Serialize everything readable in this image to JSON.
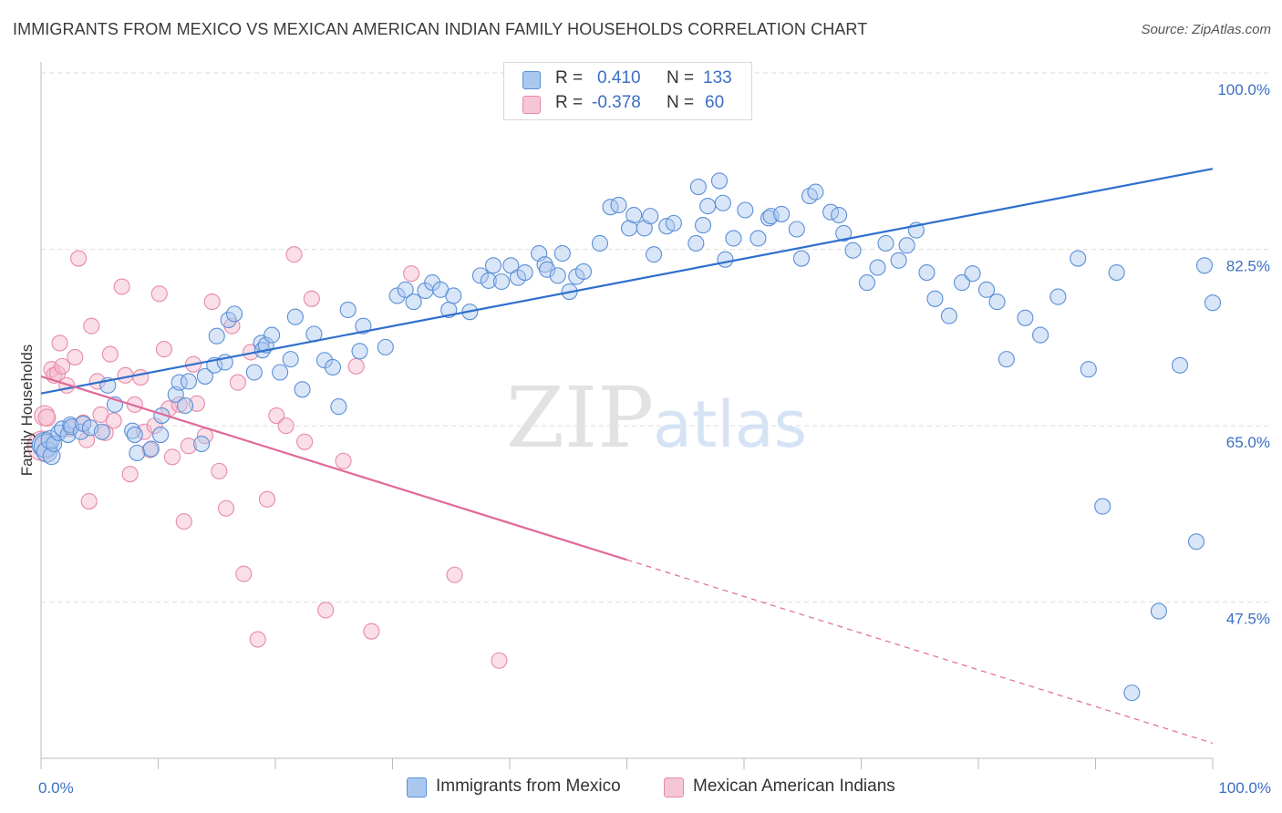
{
  "title": "IMMIGRANTS FROM MEXICO VS MEXICAN AMERICAN INDIAN FAMILY HOUSEHOLDS CORRELATION CHART",
  "source": "Source: ZipAtlas.com",
  "watermark": {
    "zip": "ZIP",
    "atlas": "atlas"
  },
  "legend": {
    "r_label": "R =",
    "n_label": "N =",
    "series1": {
      "r": "0.410",
      "n": "133"
    },
    "series2": {
      "r": "-0.378",
      "n": "60"
    }
  },
  "bottom_legend": {
    "series1": "Immigrants from Mexico",
    "series2": "Mexican American Indians"
  },
  "colors": {
    "blue_fill": "#aac8ef",
    "blue_stroke": "#5b8fd6",
    "blue_line": "#2f6fcc",
    "pink_fill": "#f5b8cb",
    "pink_stroke": "#e88aa8",
    "pink_line": "#e0699a",
    "tick_label": "#3b6fc4",
    "grid": "#dddddd"
  },
  "chart_data": {
    "type": "scatter",
    "title": "IMMIGRANTS FROM MEXICO VS MEXICAN AMERICAN INDIAN FAMILY HOUSEHOLDS CORRELATION CHART",
    "xlabel": "",
    "ylabel": "Family Households",
    "xlim": [
      0,
      100
    ],
    "ylim": [
      32,
      102
    ],
    "x_tick_labels": [
      {
        "value": 0,
        "label": "0.0%"
      },
      {
        "value": 100,
        "label": "100.0%"
      }
    ],
    "y_tick_labels": [
      {
        "value": 100,
        "label": "100.0%"
      },
      {
        "value": 82.5,
        "label": "82.5%"
      },
      {
        "value": 65,
        "label": "65.0%"
      },
      {
        "value": 47.5,
        "label": "47.5%"
      }
    ],
    "x_minor_ticks": [
      0,
      10,
      20,
      30,
      40,
      50,
      60,
      70,
      80,
      90,
      100
    ],
    "grid": true,
    "legend_position": "top-center",
    "series": [
      {
        "name": "Immigrants from Mexico",
        "color": "#5b8fd6",
        "r": 0.41,
        "n": 133,
        "trendline": {
          "x": [
            0,
            100
          ],
          "y": [
            68.2,
            90.5
          ]
        },
        "points": [
          [
            0.3,
            63.1,
            1.6
          ],
          [
            0.4,
            63.0,
            1.5
          ],
          [
            0.5,
            62.4,
            1.3
          ],
          [
            0.8,
            63.6,
            1.2
          ],
          [
            0.9,
            62.0,
            1.1
          ],
          [
            1.1,
            63.2,
            1.0
          ],
          [
            1.5,
            64.3,
            1.0
          ],
          [
            1.8,
            64.7,
            1.0
          ],
          [
            2.3,
            64.1,
            1.0
          ],
          [
            2.5,
            65.1,
            1.0
          ],
          [
            2.6,
            64.9,
            1.0
          ],
          [
            3.4,
            64.4,
            1.0
          ],
          [
            3.6,
            65.2,
            1.0
          ],
          [
            4.2,
            64.8,
            1.0
          ],
          [
            5.2,
            64.4,
            1.0
          ],
          [
            5.7,
            69.0,
            1.0
          ],
          [
            6.3,
            67.1,
            1.0
          ],
          [
            7.8,
            64.5,
            1.0
          ],
          [
            8.0,
            64.1,
            1.0
          ],
          [
            8.2,
            62.3,
            1.0
          ],
          [
            9.4,
            62.7,
            1.0
          ],
          [
            10.2,
            64.1,
            1.0
          ],
          [
            10.3,
            66.0,
            1.0
          ],
          [
            11.5,
            68.1,
            1.0
          ],
          [
            11.8,
            69.3,
            1.0
          ],
          [
            12.3,
            67.0,
            1.0
          ],
          [
            12.6,
            69.4,
            1.0
          ],
          [
            13.7,
            63.2,
            1.0
          ],
          [
            14.0,
            69.9,
            1.0
          ],
          [
            14.8,
            71.0,
            1.0
          ],
          [
            15.0,
            73.9,
            1.0
          ],
          [
            15.7,
            71.3,
            1.0
          ],
          [
            16.0,
            75.5,
            1.0
          ],
          [
            16.5,
            76.1,
            1.0
          ],
          [
            18.2,
            70.3,
            1.0
          ],
          [
            18.8,
            73.2,
            1.0
          ],
          [
            18.9,
            72.5,
            1.0
          ],
          [
            19.2,
            73.0,
            1.0
          ],
          [
            19.7,
            74.0,
            1.0
          ],
          [
            20.4,
            70.3,
            1.0
          ],
          [
            21.3,
            71.6,
            1.0
          ],
          [
            21.7,
            75.8,
            1.0
          ],
          [
            22.3,
            68.6,
            1.0
          ],
          [
            23.3,
            74.1,
            1.0
          ],
          [
            24.2,
            71.5,
            1.0
          ],
          [
            24.9,
            70.8,
            1.0
          ],
          [
            25.4,
            66.9,
            1.0
          ],
          [
            26.2,
            76.5,
            1.0
          ],
          [
            27.2,
            72.4,
            1.0
          ],
          [
            27.5,
            74.9,
            1.0
          ],
          [
            29.4,
            72.8,
            1.0
          ],
          [
            30.4,
            77.9,
            1.0
          ],
          [
            31.1,
            78.5,
            1.0
          ],
          [
            31.8,
            77.3,
            1.0
          ],
          [
            32.8,
            78.4,
            1.0
          ],
          [
            33.4,
            79.2,
            1.0
          ],
          [
            34.1,
            78.5,
            1.0
          ],
          [
            34.8,
            76.5,
            1.0
          ],
          [
            35.2,
            77.9,
            1.0
          ],
          [
            36.6,
            76.3,
            1.0
          ],
          [
            37.5,
            79.9,
            1.0
          ],
          [
            38.2,
            79.4,
            1.0
          ],
          [
            38.6,
            80.9,
            1.0
          ],
          [
            39.3,
            79.3,
            1.0
          ],
          [
            40.1,
            80.9,
            1.0
          ],
          [
            40.7,
            79.7,
            1.0
          ],
          [
            41.3,
            80.2,
            1.0
          ],
          [
            42.5,
            82.1,
            1.0
          ],
          [
            43.0,
            81.0,
            1.0
          ],
          [
            43.2,
            80.5,
            1.0
          ],
          [
            44.1,
            79.9,
            1.0
          ],
          [
            44.5,
            82.1,
            1.0
          ],
          [
            45.1,
            78.3,
            1.0
          ],
          [
            45.7,
            79.8,
            1.0
          ],
          [
            46.3,
            80.3,
            1.0
          ],
          [
            47.7,
            83.1,
            1.0
          ],
          [
            48.6,
            86.7,
            1.0
          ],
          [
            49.3,
            86.9,
            1.0
          ],
          [
            50.2,
            84.6,
            1.0
          ],
          [
            50.6,
            85.9,
            1.0
          ],
          [
            51.5,
            84.6,
            1.0
          ],
          [
            52.0,
            85.8,
            1.0
          ],
          [
            52.3,
            82.0,
            1.0
          ],
          [
            53.4,
            84.8,
            1.0
          ],
          [
            54.0,
            85.1,
            1.0
          ],
          [
            55.9,
            83.1,
            1.0
          ],
          [
            56.1,
            88.7,
            1.0
          ],
          [
            56.5,
            84.9,
            1.0
          ],
          [
            56.9,
            86.8,
            1.0
          ],
          [
            57.9,
            89.3,
            1.0
          ],
          [
            58.2,
            87.1,
            1.0
          ],
          [
            58.4,
            81.5,
            1.0
          ],
          [
            59.1,
            83.6,
            1.0
          ],
          [
            60.1,
            86.4,
            1.0
          ],
          [
            61.2,
            83.6,
            1.0
          ],
          [
            62.1,
            85.6,
            1.0
          ],
          [
            62.3,
            85.8,
            1.0
          ],
          [
            63.2,
            86.0,
            1.0
          ],
          [
            64.5,
            84.5,
            1.0
          ],
          [
            64.9,
            81.6,
            1.0
          ],
          [
            65.6,
            87.8,
            1.0
          ],
          [
            66.1,
            88.2,
            1.0
          ],
          [
            67.4,
            86.2,
            1.0
          ],
          [
            68.1,
            85.9,
            1.0
          ],
          [
            68.5,
            84.1,
            1.0
          ],
          [
            69.3,
            82.4,
            1.0
          ],
          [
            70.5,
            79.2,
            1.0
          ],
          [
            71.4,
            80.7,
            1.0
          ],
          [
            72.1,
            83.1,
            1.0
          ],
          [
            73.2,
            81.4,
            1.0
          ],
          [
            73.9,
            82.9,
            1.0
          ],
          [
            74.7,
            84.4,
            1.0
          ],
          [
            75.6,
            80.2,
            1.0
          ],
          [
            76.3,
            77.6,
            1.0
          ],
          [
            77.5,
            75.9,
            1.0
          ],
          [
            78.6,
            79.2,
            1.0
          ],
          [
            79.5,
            80.1,
            1.0
          ],
          [
            80.7,
            78.5,
            1.0
          ],
          [
            81.6,
            77.3,
            1.0
          ],
          [
            82.4,
            71.6,
            1.0
          ],
          [
            84.0,
            75.7,
            1.0
          ],
          [
            85.3,
            74.0,
            1.0
          ],
          [
            86.8,
            77.8,
            1.0
          ],
          [
            88.5,
            81.6,
            1.0
          ],
          [
            89.4,
            70.6,
            1.0
          ],
          [
            90.6,
            57.0,
            1.0
          ],
          [
            91.8,
            80.2,
            1.0
          ],
          [
            93.1,
            38.5,
            1.0
          ],
          [
            95.4,
            46.6,
            1.0
          ],
          [
            97.2,
            71.0,
            1.0
          ],
          [
            98.6,
            53.5,
            1.0
          ],
          [
            99.3,
            80.9,
            1.0
          ],
          [
            100.0,
            77.2,
            1.0
          ]
        ]
      },
      {
        "name": "Mexican American Indians",
        "color": "#e88aa8",
        "r": -0.378,
        "n": 60,
        "trendline": {
          "x": [
            0,
            50
          ],
          "y": [
            69.9,
            51.7
          ],
          "dashed_to": {
            "x": 100,
            "y": 33.5
          }
        },
        "points": [
          [
            0.1,
            63.0,
            1.9
          ],
          [
            0.3,
            66.0,
            1.3
          ],
          [
            0.5,
            65.8,
            1.1
          ],
          [
            0.9,
            70.6,
            1.0
          ],
          [
            1.1,
            70.0,
            1.0
          ],
          [
            1.4,
            70.2,
            1.0
          ],
          [
            1.6,
            73.2,
            1.0
          ],
          [
            1.8,
            70.9,
            1.0
          ],
          [
            2.2,
            69.0,
            1.0
          ],
          [
            2.5,
            64.7,
            1.0
          ],
          [
            2.9,
            71.8,
            1.0
          ],
          [
            3.2,
            81.6,
            1.0
          ],
          [
            3.6,
            65.3,
            1.0
          ],
          [
            3.9,
            63.6,
            1.0
          ],
          [
            4.1,
            57.5,
            1.0
          ],
          [
            4.3,
            74.9,
            1.0
          ],
          [
            4.8,
            69.4,
            1.0
          ],
          [
            5.1,
            66.1,
            1.0
          ],
          [
            5.5,
            64.3,
            1.0
          ],
          [
            5.9,
            72.1,
            1.0
          ],
          [
            6.2,
            65.5,
            1.0
          ],
          [
            6.9,
            78.8,
            1.0
          ],
          [
            7.2,
            70.0,
            1.0
          ],
          [
            7.6,
            60.2,
            1.0
          ],
          [
            8.0,
            67.1,
            1.0
          ],
          [
            8.5,
            69.8,
            1.0
          ],
          [
            8.8,
            64.4,
            1.0
          ],
          [
            9.3,
            62.6,
            1.0
          ],
          [
            9.7,
            65.0,
            1.0
          ],
          [
            10.1,
            78.1,
            1.0
          ],
          [
            10.5,
            72.6,
            1.0
          ],
          [
            10.9,
            66.7,
            1.0
          ],
          [
            11.2,
            61.9,
            1.0
          ],
          [
            11.8,
            67.1,
            1.0
          ],
          [
            12.2,
            55.5,
            1.0
          ],
          [
            12.6,
            63.0,
            1.0
          ],
          [
            13.0,
            71.1,
            1.0
          ],
          [
            13.3,
            67.2,
            1.0
          ],
          [
            14.0,
            64.0,
            1.0
          ],
          [
            14.6,
            77.3,
            1.0
          ],
          [
            15.2,
            60.5,
            1.0
          ],
          [
            15.8,
            56.8,
            1.0
          ],
          [
            16.3,
            74.9,
            1.0
          ],
          [
            16.8,
            69.3,
            1.0
          ],
          [
            17.3,
            50.3,
            1.0
          ],
          [
            17.9,
            72.3,
            1.0
          ],
          [
            18.5,
            43.8,
            1.0
          ],
          [
            19.3,
            57.7,
            1.0
          ],
          [
            20.1,
            66.0,
            1.0
          ],
          [
            20.9,
            65.0,
            1.0
          ],
          [
            21.6,
            82.0,
            1.0
          ],
          [
            22.5,
            63.4,
            1.0
          ],
          [
            23.1,
            77.6,
            1.0
          ],
          [
            24.3,
            46.7,
            1.0
          ],
          [
            25.8,
            61.5,
            1.0
          ],
          [
            26.9,
            70.9,
            1.0
          ],
          [
            28.2,
            44.6,
            1.0
          ],
          [
            31.6,
            80.1,
            1.0
          ],
          [
            35.3,
            50.2,
            1.0
          ],
          [
            39.1,
            41.7,
            1.0
          ]
        ]
      }
    ]
  }
}
